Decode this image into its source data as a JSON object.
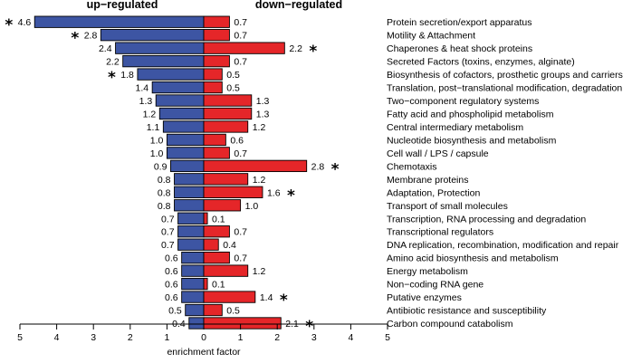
{
  "chart_data": {
    "type": "bar",
    "orientation": "horizontal-diverging",
    "left_title": "up−regulated",
    "right_title": "down−regulated",
    "xlabel": "enrichment factor",
    "xlim": [
      -5,
      5
    ],
    "x_ticks": [
      -5,
      -4,
      -3,
      -2,
      -1,
      0,
      1,
      2,
      3,
      4,
      5
    ],
    "x_tick_labels": [
      "5",
      "4",
      "3",
      "2",
      "1",
      "0",
      "1",
      "2",
      "3",
      "4",
      "5"
    ],
    "significance_marker": "*",
    "colors": {
      "up": "#3d55a3",
      "down": "#e52629"
    },
    "categories": [
      "Protein secretion/export apparatus",
      "Motility & Attachment",
      "Chaperones & heat shock proteins",
      "Secreted Factors (toxins, enzymes, alginate)",
      "Biosynthesis of cofactors, prosthetic groups and carriers",
      "Translation, post−translational modification, degradation",
      "Two−component regulatory systems",
      "Fatty acid and phospholipid metabolism",
      "Central intermediary metabolism",
      "Nucleotide biosynthesis and metabolism",
      "Cell wall / LPS / capsule",
      "Chemotaxis",
      "Membrane proteins",
      "Adaptation, Protection",
      "Transport of small molecules",
      "Transcription, RNA processing and degradation",
      "Transcriptional regulators",
      "DNA replication, recombination, modification and repair",
      "Amino acid biosynthesis and metabolism",
      "Energy metabolism",
      "Non−coding RNA gene",
      "Putative enzymes",
      "Antibiotic resistance and susceptibility",
      "Carbon compound catabolism"
    ],
    "series": [
      {
        "name": "up-regulated",
        "values": [
          4.6,
          2.8,
          2.4,
          2.2,
          1.8,
          1.4,
          1.3,
          1.2,
          1.1,
          1.0,
          1.0,
          0.9,
          0.8,
          0.8,
          0.8,
          0.7,
          0.7,
          0.7,
          0.6,
          0.6,
          0.6,
          0.6,
          0.5,
          0.4
        ],
        "labels": [
          "4.6",
          "2.8",
          "2.4",
          "2.2",
          "1.8",
          "1.4",
          "1.3",
          "1.2",
          "1.1",
          "1.0",
          "1.0",
          "0.9",
          "0.8",
          "0.8",
          "0.8",
          "0.7",
          "0.7",
          "0.7",
          "0.6",
          "0.6",
          "0.6",
          "0.6",
          "0.5",
          "0.4"
        ],
        "significant": [
          true,
          true,
          false,
          false,
          true,
          false,
          false,
          false,
          false,
          false,
          false,
          false,
          false,
          false,
          false,
          false,
          false,
          false,
          false,
          false,
          false,
          false,
          false,
          false
        ]
      },
      {
        "name": "down-regulated",
        "values": [
          0.7,
          0.7,
          2.2,
          0.7,
          0.5,
          0.5,
          1.3,
          1.3,
          1.2,
          0.6,
          0.7,
          2.8,
          1.2,
          1.6,
          1.0,
          0.1,
          0.7,
          0.4,
          0.7,
          1.2,
          0.1,
          1.4,
          0.5,
          2.1
        ],
        "labels": [
          "0.7",
          "0.7",
          "2.2",
          "0.7",
          "0.5",
          "0.5",
          "1.3",
          "1.3",
          "1.2",
          "0.6",
          "0.7",
          "2.8",
          "1.2",
          "1.6",
          "1.0",
          "0.1",
          "0.7",
          "0.4",
          "0.7",
          "1.2",
          "0.1",
          "1.4",
          "0.5",
          "2.1"
        ],
        "significant": [
          false,
          false,
          true,
          false,
          false,
          false,
          false,
          false,
          false,
          false,
          false,
          true,
          false,
          true,
          false,
          false,
          false,
          false,
          false,
          false,
          false,
          true,
          false,
          true
        ]
      }
    ]
  }
}
